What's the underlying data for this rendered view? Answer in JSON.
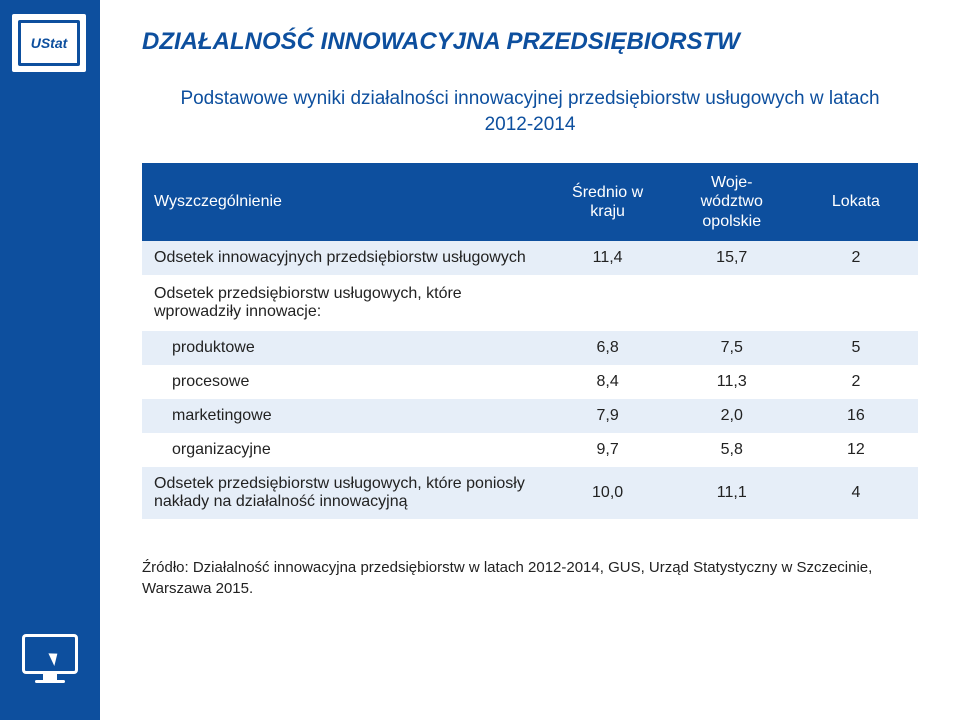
{
  "logo": {
    "text": "UStat"
  },
  "title": "DZIAŁALNOŚĆ INNOWACYJNA PRZEDSIĘBIORSTW",
  "subtitle": "Podstawowe wyniki działalności innowacyjnej przedsiębiorstw usługowych w latach 2012-2014",
  "table": {
    "headers": {
      "col0": "Wyszczególnienie",
      "col1": "Średnio w kraju",
      "col2": "Woje-\nwództwo opolskie",
      "col3": "Lokata"
    },
    "rows": [
      {
        "label": "Odsetek innowacyjnych przedsiębiorstw usługowych",
        "v1": "11,4",
        "v2": "15,7",
        "v3": "2",
        "band": true,
        "indent": 0
      },
      {
        "label": "Odsetek przedsiębiorstw usługowych, które wprowadziły innowacje:",
        "v1": "",
        "v2": "",
        "v3": "",
        "band": false,
        "indent": 0
      },
      {
        "label": "produktowe",
        "v1": "6,8",
        "v2": "7,5",
        "v3": "5",
        "band": true,
        "indent": 1
      },
      {
        "label": "procesowe",
        "v1": "8,4",
        "v2": "11,3",
        "v3": "2",
        "band": false,
        "indent": 1
      },
      {
        "label": "marketingowe",
        "v1": "7,9",
        "v2": "2,0",
        "v3": "16",
        "band": true,
        "indent": 1
      },
      {
        "label": "organizacyjne",
        "v1": "9,7",
        "v2": "5,8",
        "v3": "12",
        "band": false,
        "indent": 1
      },
      {
        "label": "Odsetek przedsiębiorstw usługowych, które poniosły nakłady na działalność innowacyjną",
        "v1": "10,0",
        "v2": "11,1",
        "v3": "4",
        "band": true,
        "indent": 0
      }
    ]
  },
  "source": "Źródło: Działalność innowacyjna przedsiębiorstw w latach 2012-2014, GUS, Urząd Statystyczny w Szczecinie, Warszawa 2015.",
  "colors": {
    "brand": "#0d4f9e",
    "band": "#e6eef8",
    "text": "#222222",
    "white": "#ffffff"
  }
}
